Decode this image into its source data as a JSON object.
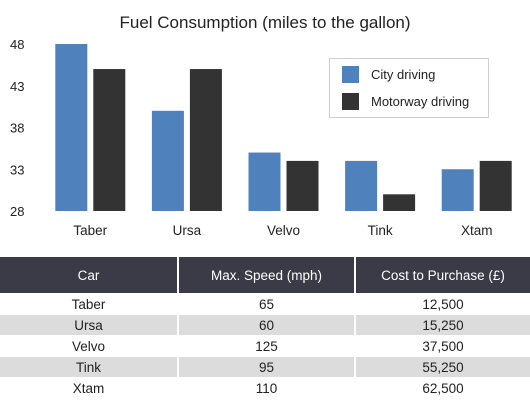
{
  "chart_data": {
    "type": "bar",
    "title": "Fuel Consumption (miles to the gallon)",
    "categories": [
      "Taber",
      "Ursa",
      "Velvo",
      "Tink",
      "Xtam"
    ],
    "series": [
      {
        "name": "City driving",
        "values": [
          48,
          40,
          35,
          34,
          33
        ],
        "color": "#4f81bd"
      },
      {
        "name": "Motorway driving",
        "values": [
          45,
          45,
          34,
          30,
          34
        ],
        "color": "#333333"
      }
    ],
    "yticks": [
      28,
      33,
      38,
      43,
      48
    ],
    "ylim": [
      28,
      48
    ],
    "grid": false,
    "legend_position": "top-right"
  },
  "table": {
    "headers": [
      "Car",
      "Max. Speed (mph)",
      "Cost to Purchase (£)"
    ],
    "rows": [
      [
        "Taber",
        "65",
        "12,500"
      ],
      [
        "Ursa",
        "60",
        "15,250"
      ],
      [
        "Velvo",
        "125",
        "37,500"
      ],
      [
        "Tink",
        "95",
        "55,250"
      ],
      [
        "Xtam",
        "110",
        "62,500"
      ]
    ]
  }
}
